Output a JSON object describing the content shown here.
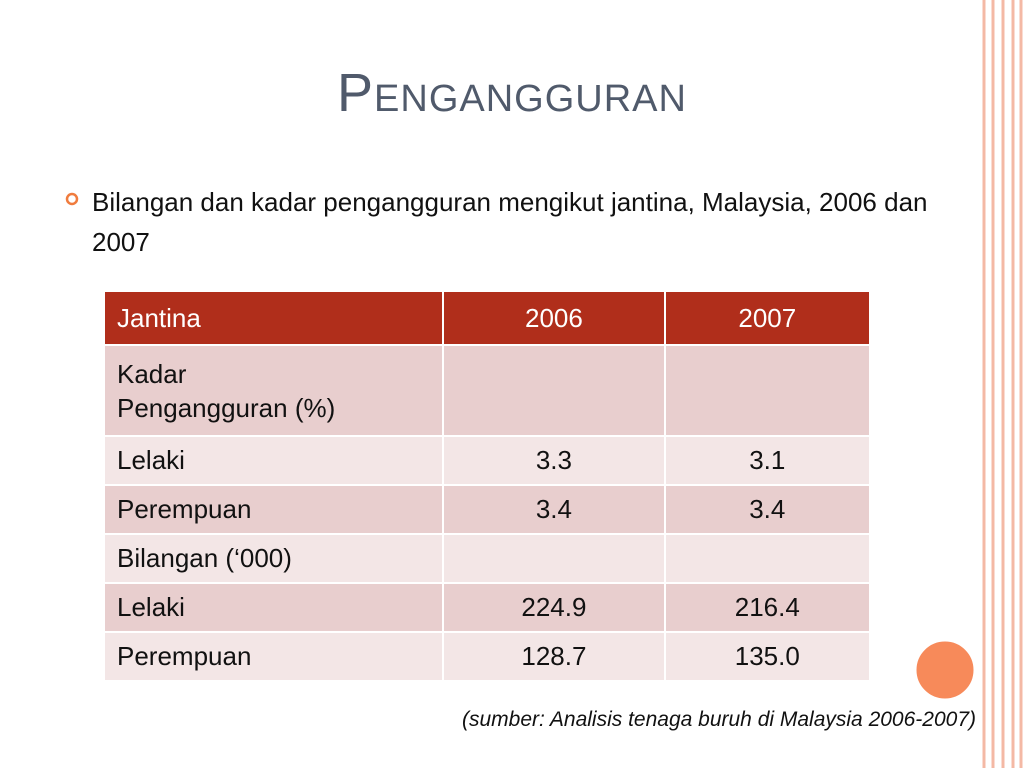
{
  "title": "Pengangguran",
  "bullet": "Bilangan dan kadar pengangguran mengikut jantina, Malaysia, 2006 dan 2007",
  "table": {
    "header": [
      "Jantina",
      "2006",
      "2007"
    ],
    "rows": [
      {
        "label": "Kadar\nPengangguran  (%)"
      },
      {
        "label": "Lelaki",
        "values": [
          "3.3",
          "3.1"
        ]
      },
      {
        "label": "Perempuan",
        "values": [
          "3.4",
          "3.4"
        ]
      },
      {
        "label": "Bilangan (‘000)"
      },
      {
        "label": "Lelaki",
        "values": [
          "224.9",
          "216.4"
        ]
      },
      {
        "label": "Perempuan",
        "values": [
          "128.7",
          "135.0"
        ]
      }
    ]
  },
  "source": "(sumber: Analisis tenaga buruh di Malaysia 2006-2007)"
}
